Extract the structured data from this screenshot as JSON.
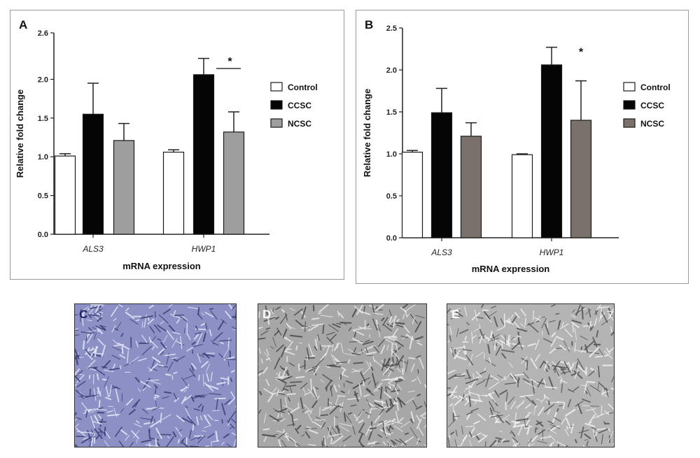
{
  "chart_data": [
    {
      "panel": "A",
      "type": "bar",
      "categories": [
        "ALS3",
        "HWP1"
      ],
      "series": [
        {
          "name": "Control",
          "values": [
            1.01,
            1.06
          ],
          "errors": [
            0.03,
            0.03
          ],
          "color": "#ffffff"
        },
        {
          "name": "CCSC",
          "values": [
            1.55,
            2.06
          ],
          "errors": [
            0.4,
            0.21
          ],
          "color": "#050505"
        },
        {
          "name": "NCSC",
          "values": [
            1.21,
            1.32
          ],
          "errors": [
            0.22,
            0.26
          ],
          "color": "#9e9e9e"
        }
      ],
      "xlabel": "mRNA expression",
      "ylabel": "Relative fold change",
      "ylim": [
        0,
        2.6
      ],
      "yticks": [
        "0.0",
        "0.5",
        "1.0",
        "1.5",
        "2.0",
        "2.6"
      ],
      "annotation": {
        "text": "*",
        "category": "HWP1",
        "between": [
          "CCSC",
          "NCSC"
        ]
      },
      "legend_position": "right",
      "grid": false
    },
    {
      "panel": "B",
      "type": "bar",
      "categories": [
        "ALS3",
        "HWP1"
      ],
      "series": [
        {
          "name": "Control",
          "values": [
            1.02,
            0.99
          ],
          "errors": [
            0.02,
            0.01
          ],
          "color": "#ffffff"
        },
        {
          "name": "CCSC",
          "values": [
            1.49,
            2.06
          ],
          "errors": [
            0.29,
            0.21
          ],
          "color": "#050505"
        },
        {
          "name": "NCSC",
          "values": [
            1.21,
            1.4
          ],
          "errors": [
            0.16,
            0.47
          ],
          "color": "#7a716b"
        }
      ],
      "xlabel": "mRNA expression",
      "ylabel": "Relative fold change",
      "ylim": [
        0,
        2.5
      ],
      "yticks": [
        "0.0",
        "0.5",
        "1.0",
        "1.5",
        "2.0",
        "2.5"
      ],
      "annotation": {
        "text": "*",
        "category": "HWP1",
        "between": [
          "CCSC",
          "NCSC"
        ]
      },
      "legend_position": "right",
      "grid": false
    }
  ],
  "photos": [
    {
      "label": "C",
      "tone": "#8c90c4"
    },
    {
      "label": "D",
      "tone": "#a7a7a7"
    },
    {
      "label": "E",
      "tone": "#b4b4b4"
    }
  ]
}
